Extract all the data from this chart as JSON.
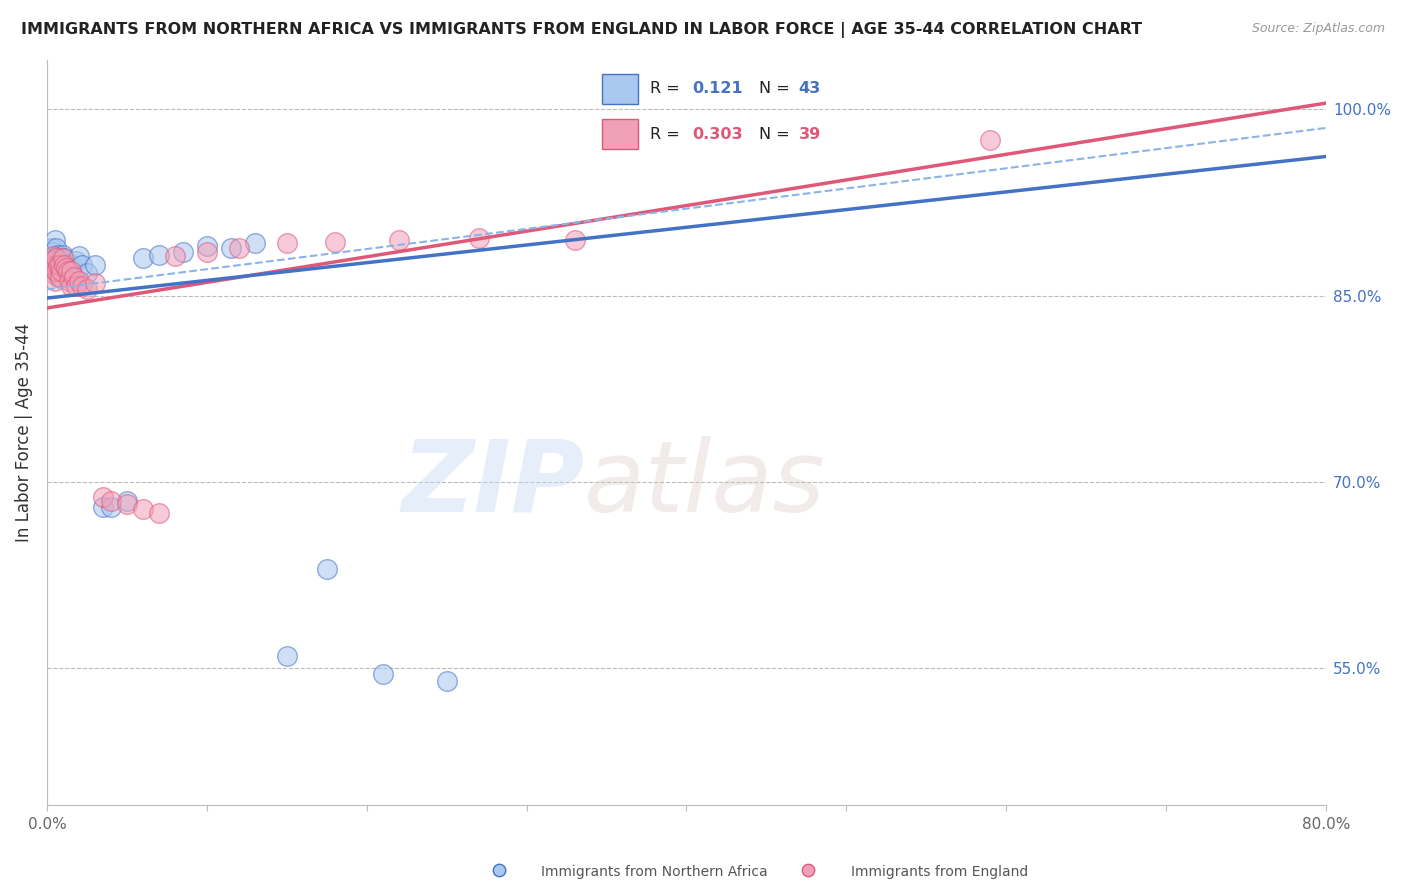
{
  "title": "IMMIGRANTS FROM NORTHERN AFRICA VS IMMIGRANTS FROM ENGLAND IN LABOR FORCE | AGE 35-44 CORRELATION CHART",
  "source": "Source: ZipAtlas.com",
  "ylabel": "In Labor Force | Age 35-44",
  "xlim": [
    0.0,
    0.8
  ],
  "ylim": [
    0.44,
    1.04
  ],
  "ytick_labels_right": [
    "100.0%",
    "85.0%",
    "70.0%",
    "55.0%"
  ],
  "ytick_positions_right": [
    1.0,
    0.85,
    0.7,
    0.55
  ],
  "color_blue": "#A8C8F0",
  "color_pink": "#F0A0B8",
  "line_blue": "#4472C4",
  "line_pink": "#E05878",
  "dashed_line_color": "#8AB4E8",
  "blue_points_x": [
    0.002,
    0.003,
    0.003,
    0.004,
    0.004,
    0.005,
    0.005,
    0.005,
    0.006,
    0.006,
    0.006,
    0.007,
    0.007,
    0.007,
    0.008,
    0.008,
    0.009,
    0.01,
    0.01,
    0.011,
    0.012,
    0.013,
    0.014,
    0.015,
    0.016,
    0.018,
    0.02,
    0.022,
    0.025,
    0.03,
    0.035,
    0.04,
    0.05,
    0.06,
    0.07,
    0.085,
    0.1,
    0.115,
    0.13,
    0.15,
    0.175,
    0.21,
    0.25
  ],
  "blue_points_y": [
    0.88,
    0.888,
    0.878,
    0.885,
    0.875,
    0.895,
    0.882,
    0.87,
    0.888,
    0.88,
    0.87,
    0.883,
    0.875,
    0.865,
    0.88,
    0.873,
    0.877,
    0.883,
    0.872,
    0.88,
    0.875,
    0.87,
    0.868,
    0.872,
    0.875,
    0.878,
    0.882,
    0.875,
    0.868,
    0.875,
    0.68,
    0.68,
    0.685,
    0.88,
    0.883,
    0.885,
    0.89,
    0.888,
    0.892,
    0.56,
    0.63,
    0.545,
    0.54
  ],
  "pink_points_x": [
    0.002,
    0.003,
    0.003,
    0.004,
    0.005,
    0.005,
    0.006,
    0.006,
    0.007,
    0.008,
    0.008,
    0.009,
    0.01,
    0.011,
    0.012,
    0.013,
    0.014,
    0.015,
    0.015,
    0.017,
    0.018,
    0.02,
    0.022,
    0.025,
    0.03,
    0.035,
    0.04,
    0.05,
    0.06,
    0.07,
    0.08,
    0.1,
    0.12,
    0.15,
    0.18,
    0.22,
    0.27,
    0.33,
    0.59
  ],
  "pink_points_y": [
    0.872,
    0.868,
    0.878,
    0.882,
    0.875,
    0.862,
    0.87,
    0.88,
    0.875,
    0.865,
    0.875,
    0.87,
    0.88,
    0.875,
    0.872,
    0.87,
    0.862,
    0.858,
    0.87,
    0.865,
    0.858,
    0.862,
    0.858,
    0.855,
    0.86,
    0.688,
    0.685,
    0.682,
    0.678,
    0.675,
    0.882,
    0.885,
    0.888,
    0.892,
    0.893,
    0.895,
    0.896,
    0.895,
    0.975
  ],
  "blue_trend_x0": 0.0,
  "blue_trend_y0": 0.848,
  "blue_trend_x1": 0.8,
  "blue_trend_y1": 0.962,
  "pink_trend_x0": 0.0,
  "pink_trend_y0": 0.84,
  "pink_trend_x1": 0.8,
  "pink_trend_y1": 1.005,
  "dashed_trend_x0": 0.0,
  "dashed_trend_y0": 0.855,
  "dashed_trend_x1": 0.8,
  "dashed_trend_y1": 0.985
}
